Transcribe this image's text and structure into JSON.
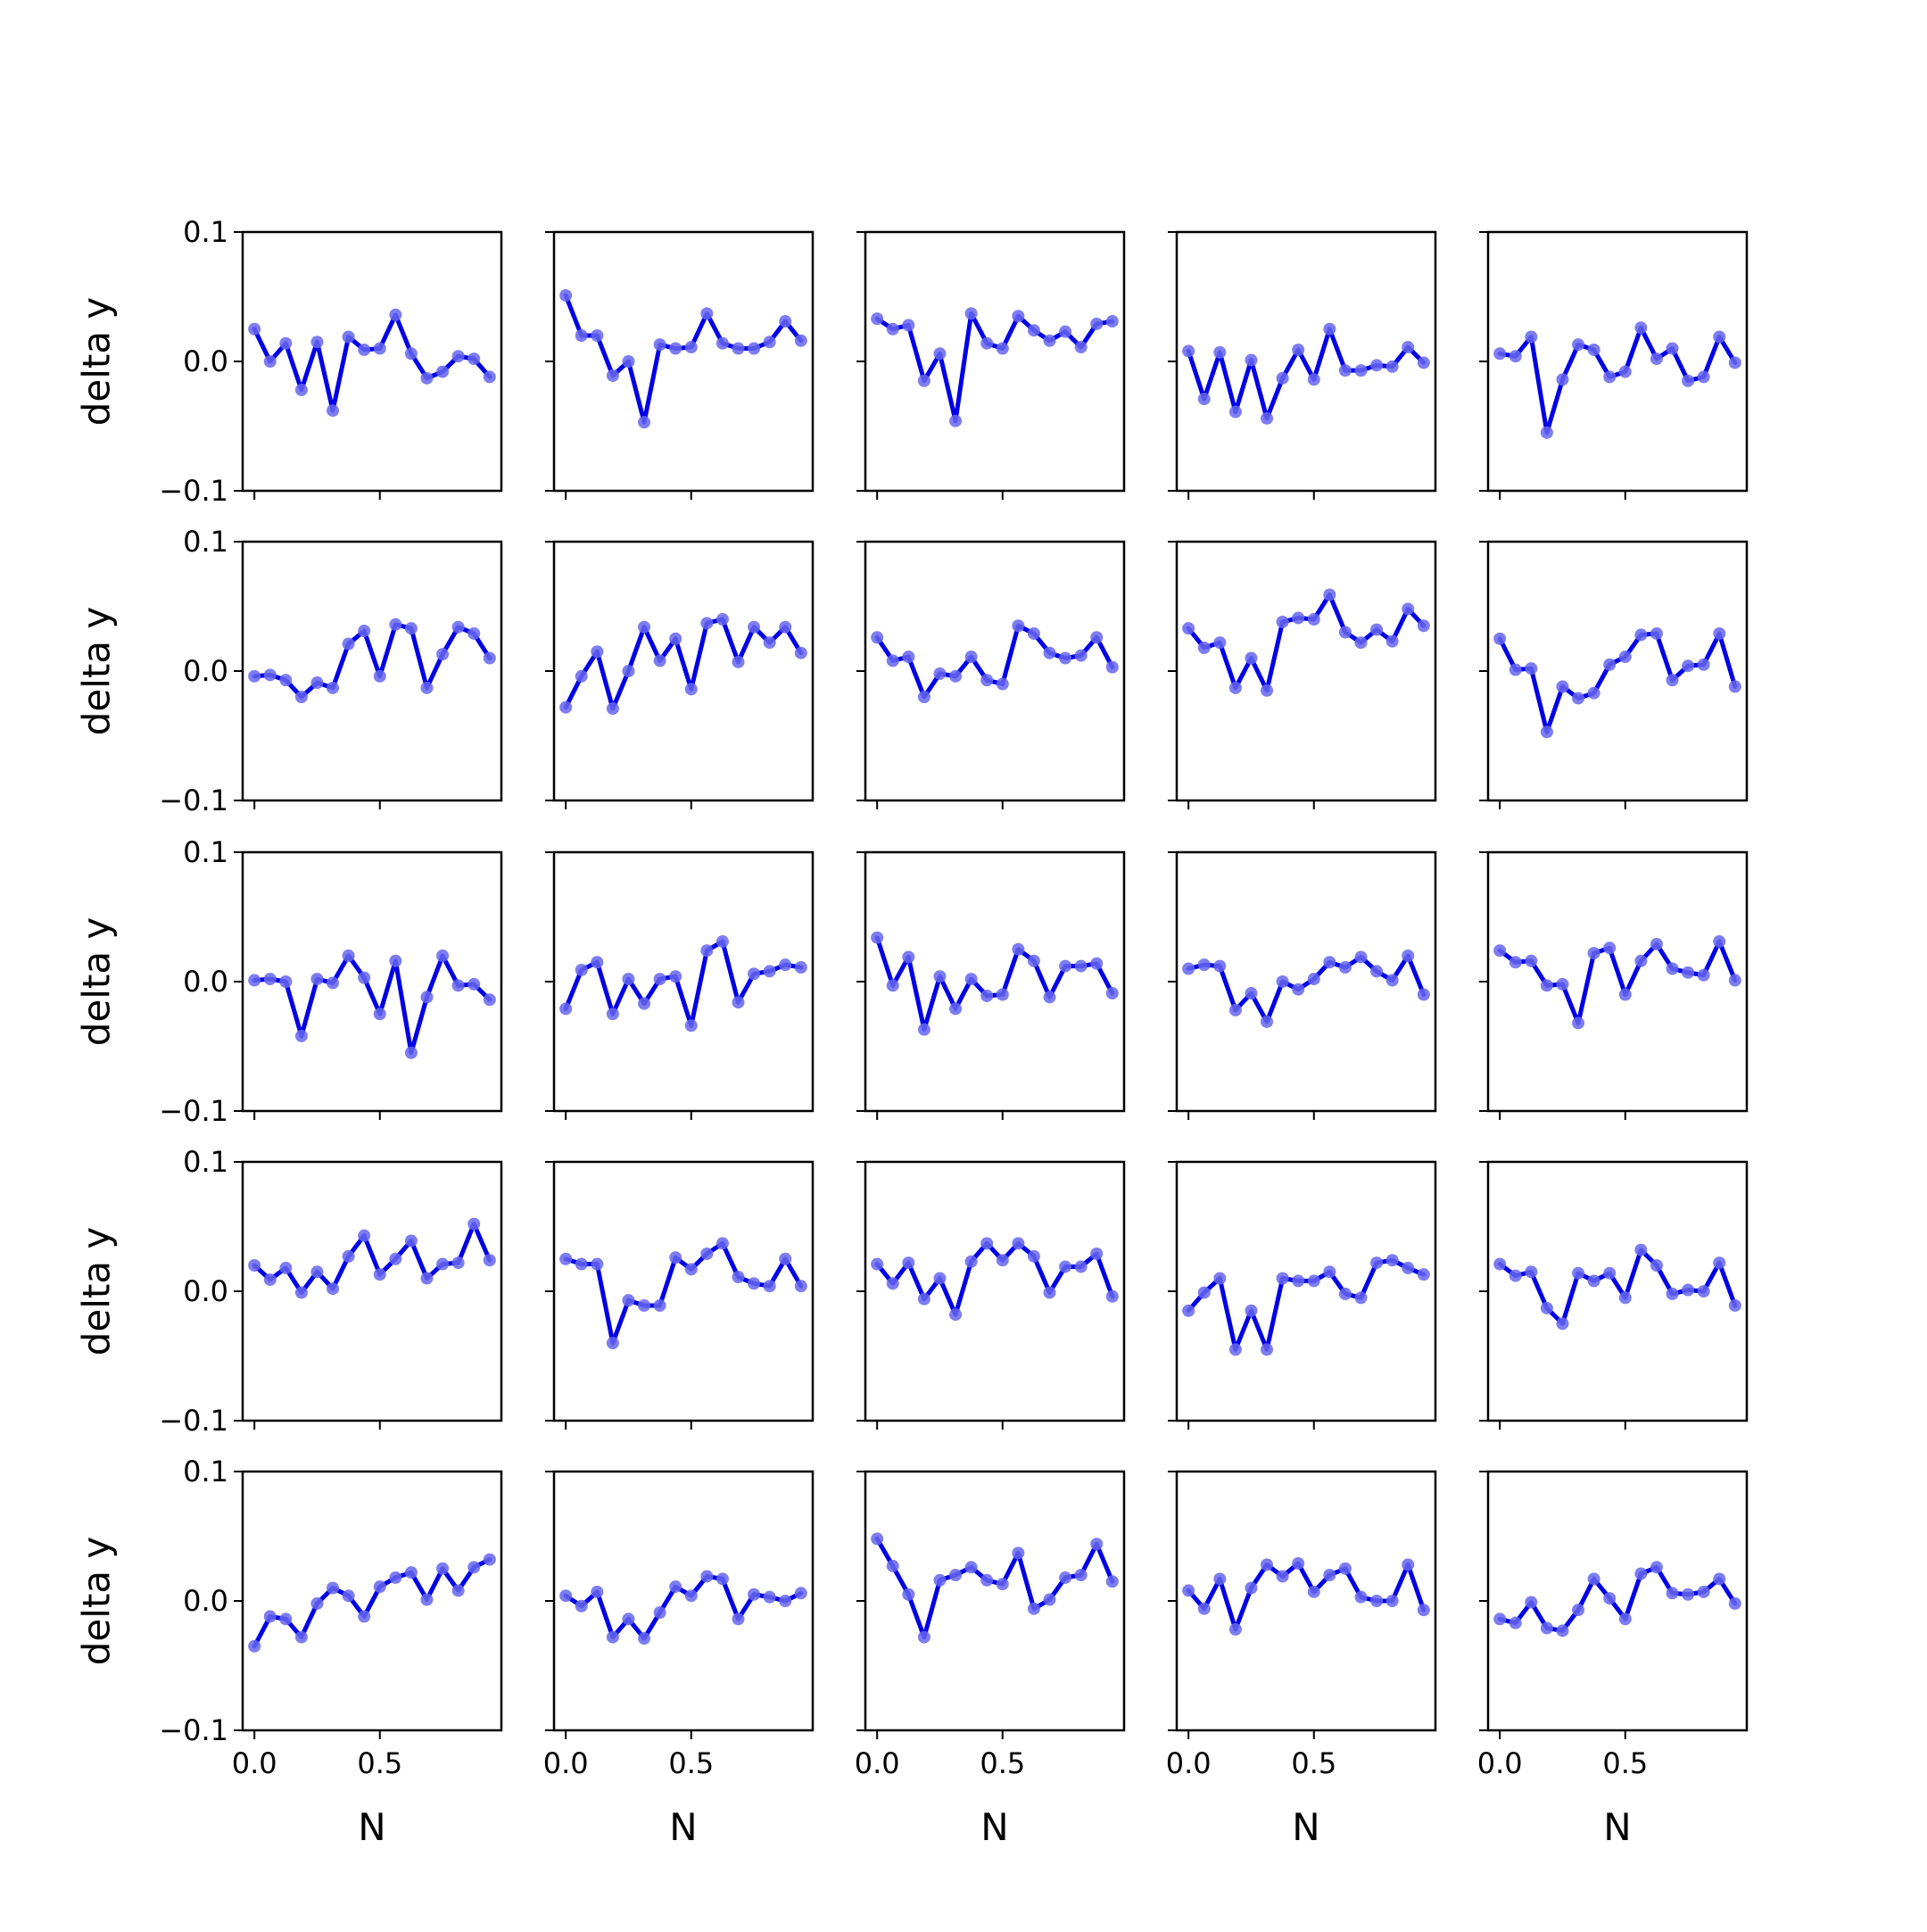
{
  "chart_data": {
    "type": "line",
    "layout": {
      "rows": 5,
      "cols": 5,
      "sharex": true,
      "sharey": true
    },
    "x": [
      0.0,
      0.0625,
      0.125,
      0.1875,
      0.25,
      0.3125,
      0.375,
      0.4375,
      0.5,
      0.5625,
      0.625,
      0.6875,
      0.75,
      0.8125,
      0.875,
      0.9375
    ],
    "xlim": [
      -0.046875,
      0.984375
    ],
    "ylim": [
      -0.1,
      0.1
    ],
    "xticks": [
      0.0,
      0.5
    ],
    "xtick_labels": [
      "0.0",
      "0.5"
    ],
    "yticks": [
      -0.1,
      0.0,
      0.1
    ],
    "ytick_labels": [
      "−0.1",
      "0.0",
      "0.1"
    ],
    "xlabel": "N",
    "ylabel": "delta y",
    "grid": false,
    "line_color": "#0000e6",
    "marker_color": "#6666ee",
    "panels": [
      {
        "values": [
          0.025,
          0.0,
          0.014,
          -0.022,
          0.015,
          -0.038,
          0.019,
          0.009,
          0.01,
          0.036,
          0.006,
          -0.013,
          -0.008,
          0.004,
          0.002,
          -0.012
        ]
      },
      {
        "values": [
          0.051,
          0.02,
          0.02,
          -0.011,
          0.0,
          -0.047,
          0.013,
          0.01,
          0.011,
          0.037,
          0.014,
          0.01,
          0.01,
          0.015,
          0.031,
          0.016
        ]
      },
      {
        "values": [
          0.033,
          0.025,
          0.028,
          -0.015,
          0.006,
          -0.046,
          0.037,
          0.014,
          0.01,
          0.035,
          0.024,
          0.016,
          0.023,
          0.011,
          0.029,
          0.031
        ]
      },
      {
        "values": [
          0.008,
          -0.029,
          0.007,
          -0.039,
          0.001,
          -0.044,
          -0.013,
          0.009,
          -0.014,
          0.025,
          -0.007,
          -0.007,
          -0.003,
          -0.004,
          0.011,
          -0.001
        ]
      },
      {
        "values": [
          0.006,
          0.004,
          0.019,
          -0.055,
          -0.014,
          0.013,
          0.009,
          -0.012,
          -0.008,
          0.026,
          0.002,
          0.01,
          -0.015,
          -0.012,
          0.019,
          -0.001
        ]
      },
      {
        "values": [
          -0.004,
          -0.003,
          -0.007,
          -0.02,
          -0.009,
          -0.013,
          0.021,
          0.031,
          -0.004,
          0.036,
          0.033,
          -0.013,
          0.013,
          0.034,
          0.029,
          0.01
        ]
      },
      {
        "values": [
          -0.028,
          -0.004,
          0.015,
          -0.029,
          0.0,
          0.034,
          0.008,
          0.025,
          -0.014,
          0.037,
          0.04,
          0.007,
          0.034,
          0.022,
          0.034,
          0.014
        ]
      },
      {
        "values": [
          0.026,
          0.008,
          0.011,
          -0.02,
          -0.002,
          -0.004,
          0.011,
          -0.007,
          -0.01,
          0.035,
          0.029,
          0.014,
          0.01,
          0.012,
          0.026,
          0.003
        ]
      },
      {
        "values": [
          0.033,
          0.018,
          0.022,
          -0.013,
          0.01,
          -0.015,
          0.038,
          0.041,
          0.04,
          0.059,
          0.03,
          0.022,
          0.032,
          0.023,
          0.048,
          0.035
        ]
      },
      {
        "values": [
          0.025,
          0.001,
          0.002,
          -0.047,
          -0.012,
          -0.021,
          -0.017,
          0.005,
          0.011,
          0.028,
          0.029,
          -0.007,
          0.004,
          0.005,
          0.029,
          -0.012
        ]
      },
      {
        "values": [
          0.001,
          0.002,
          0.0,
          -0.042,
          0.002,
          -0.001,
          0.02,
          0.003,
          -0.025,
          0.016,
          -0.055,
          -0.012,
          0.02,
          -0.003,
          -0.002,
          -0.014
        ]
      },
      {
        "values": [
          -0.021,
          0.009,
          0.015,
          -0.025,
          0.002,
          -0.017,
          0.002,
          0.004,
          -0.034,
          0.024,
          0.031,
          -0.016,
          0.006,
          0.008,
          0.013,
          0.011
        ]
      },
      {
        "values": [
          0.034,
          -0.003,
          0.019,
          -0.037,
          0.004,
          -0.021,
          0.002,
          -0.011,
          -0.01,
          0.025,
          0.016,
          -0.012,
          0.012,
          0.012,
          0.014,
          -0.009
        ]
      },
      {
        "values": [
          0.01,
          0.013,
          0.012,
          -0.022,
          -0.009,
          -0.031,
          0.0,
          -0.006,
          0.002,
          0.015,
          0.011,
          0.019,
          0.008,
          0.001,
          0.02,
          -0.01
        ]
      },
      {
        "values": [
          0.024,
          0.015,
          0.016,
          -0.003,
          -0.002,
          -0.032,
          0.022,
          0.026,
          -0.01,
          0.016,
          0.029,
          0.01,
          0.007,
          0.005,
          0.031,
          0.001
        ]
      },
      {
        "values": [
          0.02,
          0.009,
          0.018,
          -0.001,
          0.015,
          0.002,
          0.027,
          0.043,
          0.013,
          0.025,
          0.039,
          0.01,
          0.021,
          0.022,
          0.052,
          0.024
        ]
      },
      {
        "values": [
          0.025,
          0.021,
          0.021,
          -0.04,
          -0.007,
          -0.011,
          -0.011,
          0.026,
          0.017,
          0.029,
          0.037,
          0.011,
          0.006,
          0.004,
          0.025,
          0.004
        ]
      },
      {
        "values": [
          0.021,
          0.006,
          0.022,
          -0.006,
          0.01,
          -0.018,
          0.023,
          0.037,
          0.024,
          0.037,
          0.027,
          -0.001,
          0.019,
          0.019,
          0.029,
          -0.004
        ]
      },
      {
        "values": [
          -0.015,
          -0.001,
          0.01,
          -0.045,
          -0.015,
          -0.045,
          0.01,
          0.008,
          0.008,
          0.015,
          -0.002,
          -0.005,
          0.022,
          0.024,
          0.018,
          0.013
        ]
      },
      {
        "values": [
          0.021,
          0.012,
          0.015,
          -0.013,
          -0.025,
          0.014,
          0.008,
          0.014,
          -0.005,
          0.032,
          0.02,
          -0.002,
          0.001,
          0.0,
          0.022,
          -0.011
        ]
      },
      {
        "values": [
          -0.035,
          -0.012,
          -0.014,
          -0.028,
          -0.002,
          0.01,
          0.004,
          -0.012,
          0.011,
          0.018,
          0.022,
          0.001,
          0.025,
          0.008,
          0.026,
          0.032
        ]
      },
      {
        "values": [
          0.004,
          -0.004,
          0.007,
          -0.028,
          -0.014,
          -0.029,
          -0.009,
          0.011,
          0.004,
          0.019,
          0.017,
          -0.014,
          0.005,
          0.003,
          0.0,
          0.006
        ]
      },
      {
        "values": [
          0.048,
          0.027,
          0.005,
          -0.028,
          0.016,
          0.02,
          0.026,
          0.016,
          0.013,
          0.037,
          -0.006,
          0.001,
          0.018,
          0.02,
          0.044,
          0.015
        ]
      },
      {
        "values": [
          0.008,
          -0.006,
          0.017,
          -0.022,
          0.01,
          0.028,
          0.019,
          0.029,
          0.007,
          0.02,
          0.025,
          0.003,
          0.0,
          0.0,
          0.028,
          -0.007
        ]
      },
      {
        "values": [
          -0.014,
          -0.017,
          -0.001,
          -0.021,
          -0.023,
          -0.007,
          0.017,
          0.002,
          -0.014,
          0.021,
          0.026,
          0.006,
          0.005,
          0.007,
          0.017,
          -0.002
        ]
      }
    ]
  }
}
